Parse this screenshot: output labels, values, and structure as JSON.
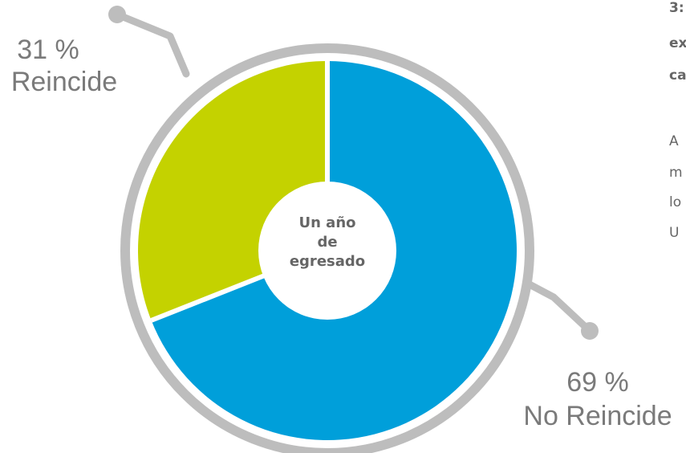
{
  "chart_data": {
    "type": "donut",
    "center_label": [
      "Un año",
      "de",
      "egresado"
    ],
    "categories": [
      "No Reincide",
      "Reincide"
    ],
    "values": [
      69,
      31
    ],
    "value_labels": [
      "69 %",
      "31 %"
    ],
    "colors": [
      "#009fda",
      "#c4d200"
    ]
  },
  "side_text": {
    "bold_lines": [
      "3:",
      "ex",
      "ca"
    ],
    "lines": [
      "A",
      "m",
      "lo",
      "U"
    ]
  }
}
